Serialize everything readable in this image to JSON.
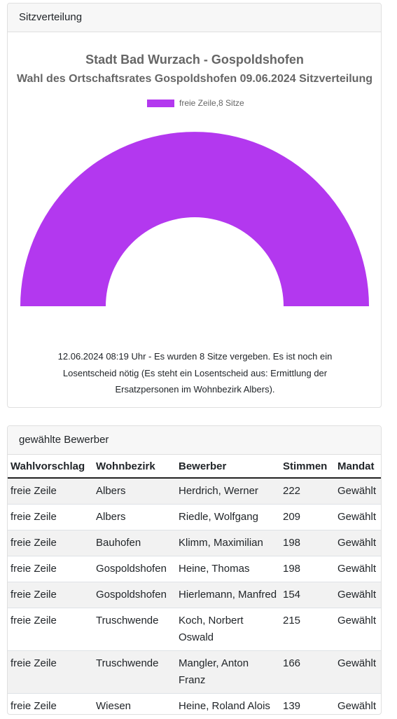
{
  "seat_card": {
    "header": "Sitzverteilung"
  },
  "chart_data": {
    "type": "pie",
    "variant": "semicircle-donut",
    "title": "Stadt Bad Wurzach - Gospoldshofen",
    "subtitle": "Wahl des Ortschaftsrates Gospoldshofen 09.06.2024 Sitzverteilung",
    "legend_position": "top-center",
    "series": [
      {
        "name": "freie Zeile",
        "legend_label": "freie Zeile,8 Sitze",
        "value": 8,
        "color": "#b338ef"
      }
    ]
  },
  "note": "12.06.2024 08:19 Uhr - Es wurden 8 Sitze vergeben. Es ist noch ein Losentscheid nötig (Es steht ein Losentscheid aus: Ermittlung der Ersatzpersonen im Wohnbezirk Albers).",
  "candidates": {
    "header": "gewählte Bewerber",
    "columns": [
      "Wahlvorschlag",
      "Wohnbezirk",
      "Bewerber",
      "Stimmen",
      "Mandat"
    ],
    "rows": [
      [
        "freie Zeile",
        "Albers",
        "Herdrich, Werner",
        "222",
        "Gewählt"
      ],
      [
        "freie Zeile",
        "Albers",
        "Riedle, Wolfgang",
        "209",
        "Gewählt"
      ],
      [
        "freie Zeile",
        "Bauhofen",
        "Klimm, Maximilian",
        "198",
        "Gewählt"
      ],
      [
        "freie Zeile",
        "Gospoldshofen",
        "Heine, Thomas",
        "198",
        "Gewählt"
      ],
      [
        "freie Zeile",
        "Gospoldshofen",
        "Hierlemann, Manfred",
        "154",
        "Gewählt"
      ],
      [
        "freie Zeile",
        "Truschwende",
        "Koch, Norbert Oswald",
        "215",
        "Gewählt"
      ],
      [
        "freie Zeile",
        "Truschwende",
        "Mangler, Anton Franz",
        "166",
        "Gewählt"
      ],
      [
        "freie Zeile",
        "Wiesen",
        "Heine, Roland Alois",
        "139",
        "Gewählt"
      ]
    ]
  }
}
